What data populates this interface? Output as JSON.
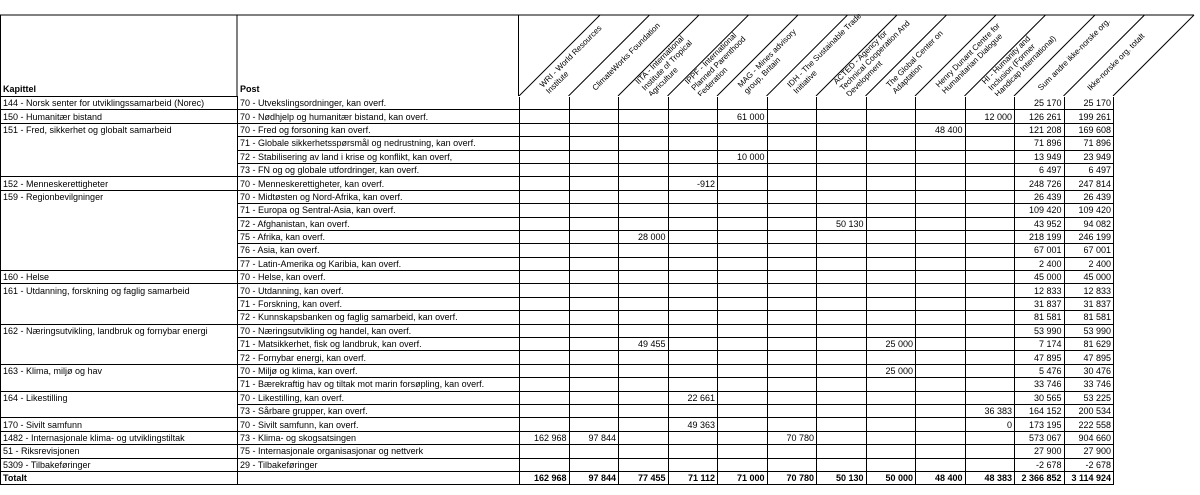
{
  "table": {
    "headers": [
      "Kapittel",
      "Post"
    ],
    "columns": [
      [
        "WRI - World Resources",
        "Institute"
      ],
      [
        "ClimateWorks Foundation"
      ],
      [
        "IITA - International",
        "Institute of Tropical",
        "Agriculture"
      ],
      [
        "IPPF - International",
        "Planned Parenthood",
        "Federation"
      ],
      [
        "MAG - Mines advisory",
        "group, Britain"
      ],
      [
        "IDH - The Sustainable Trade",
        "Initiative"
      ],
      [
        "ACTED - Agency for",
        "Technical Cooperation And",
        "Development"
      ],
      [
        "The Global Center on",
        "Adaptation"
      ],
      [
        "Henry Dunant Centre for",
        "Humanitarian Dialogue"
      ],
      [
        "HI - Humanity and",
        "Inclusion (Former",
        "Handicap International)"
      ],
      [
        "Sum andre ikke-norske org."
      ],
      [
        "Ikke-norske org. totalt"
      ]
    ],
    "rows": [
      [
        "144 - Norsk senter for utviklingssamarbeid (Norec)",
        "70 - Utvekslingsordninger, kan overf.",
        null,
        null,
        null,
        null,
        null,
        null,
        null,
        null,
        null,
        null,
        "25 170",
        "25 170"
      ],
      [
        "150 - Humanitær bistand",
        "70 - Nødhjelp og humanitær bistand, kan overf.",
        null,
        null,
        null,
        null,
        "61 000",
        null,
        null,
        null,
        null,
        "12 000",
        "126 261",
        "199 261"
      ],
      [
        "151 - Fred, sikkerhet og globalt samarbeid",
        "70 - Fred og forsoning kan overf.",
        null,
        null,
        null,
        null,
        null,
        null,
        null,
        null,
        "48 400",
        null,
        "121 208",
        "169 608"
      ],
      [
        null,
        "71 - Globale sikkerhetsspørsmål og nedrustning, kan overf.",
        null,
        null,
        null,
        null,
        null,
        null,
        null,
        null,
        null,
        null,
        "71 896",
        "71 896"
      ],
      [
        null,
        "72 - Stabilisering av land i krise og konflikt, kan overf,",
        null,
        null,
        null,
        null,
        "10 000",
        null,
        null,
        null,
        null,
        null,
        "13 949",
        "23 949"
      ],
      [
        null,
        "73 - FN og og globale utfordringer, kan overf.",
        null,
        null,
        null,
        null,
        null,
        null,
        null,
        null,
        null,
        null,
        "6 497",
        "6 497"
      ],
      [
        "152 - Menneskerettigheter",
        "70 - Menneskerettigheter, kan overf.",
        null,
        null,
        null,
        "-912",
        null,
        null,
        null,
        null,
        null,
        null,
        "248 726",
        "247 814"
      ],
      [
        "159 - Regionbevilgninger",
        "70 - Midtøsten og Nord-Afrika, kan overf.",
        null,
        null,
        null,
        null,
        null,
        null,
        null,
        null,
        null,
        null,
        "26 439",
        "26 439"
      ],
      [
        null,
        "71 - Europa og Sentral-Asia, kan overf.",
        null,
        null,
        null,
        null,
        null,
        null,
        null,
        null,
        null,
        null,
        "109 420",
        "109 420"
      ],
      [
        null,
        "72 - Afghanistan, kan overf.",
        null,
        null,
        null,
        null,
        null,
        null,
        "50 130",
        null,
        null,
        null,
        "43 952",
        "94 082"
      ],
      [
        null,
        "75 - Afrika, kan overf.",
        null,
        null,
        "28 000",
        null,
        null,
        null,
        null,
        null,
        null,
        null,
        "218 199",
        "246 199"
      ],
      [
        null,
        "76 - Asia, kan overf.",
        null,
        null,
        null,
        null,
        null,
        null,
        null,
        null,
        null,
        null,
        "67 001",
        "67 001"
      ],
      [
        null,
        "77 - Latin-Amerika og Karibia, kan overf.",
        null,
        null,
        null,
        null,
        null,
        null,
        null,
        null,
        null,
        null,
        "2 400",
        "2 400"
      ],
      [
        "160 - Helse",
        "70 - Helse, kan overf.",
        null,
        null,
        null,
        null,
        null,
        null,
        null,
        null,
        null,
        null,
        "45 000",
        "45 000"
      ],
      [
        "161 - Utdanning, forskning og faglig samarbeid",
        "70 - Utdanning, kan overf.",
        null,
        null,
        null,
        null,
        null,
        null,
        null,
        null,
        null,
        null,
        "12 833",
        "12 833"
      ],
      [
        null,
        "71 - Forskning, kan overf.",
        null,
        null,
        null,
        null,
        null,
        null,
        null,
        null,
        null,
        null,
        "31 837",
        "31 837"
      ],
      [
        null,
        "72 - Kunnskapsbanken og faglig samarbeid, kan overf.",
        null,
        null,
        null,
        null,
        null,
        null,
        null,
        null,
        null,
        null,
        "81 581",
        "81 581"
      ],
      [
        "162 - Næringsutvikling, landbruk og fornybar energi",
        "70 - Næringsutvikling og handel, kan overf.",
        null,
        null,
        null,
        null,
        null,
        null,
        null,
        null,
        null,
        null,
        "53 990",
        "53 990"
      ],
      [
        null,
        "71 - Matsikkerhet, fisk og landbruk, kan overf.",
        null,
        null,
        "49 455",
        null,
        null,
        null,
        null,
        "25 000",
        null,
        null,
        "7 174",
        "81 629"
      ],
      [
        null,
        "72 - Fornybar energi, kan overf.",
        null,
        null,
        null,
        null,
        null,
        null,
        null,
        null,
        null,
        null,
        "47 895",
        "47 895"
      ],
      [
        "163 - Klima, miljø og hav",
        "70 - Miljø og klima, kan overf.",
        null,
        null,
        null,
        null,
        null,
        null,
        null,
        "25 000",
        null,
        null,
        "5 476",
        "30 476"
      ],
      [
        null,
        "71 - Bærekraftig hav og tiltak mot marin forsøpling, kan overf.",
        null,
        null,
        null,
        null,
        null,
        null,
        null,
        null,
        null,
        null,
        "33 746",
        "33 746"
      ],
      [
        "164 - Likestilling",
        "70 - Likestilling, kan overf.",
        null,
        null,
        null,
        "22 661",
        null,
        null,
        null,
        null,
        null,
        null,
        "30 565",
        "53 225"
      ],
      [
        null,
        "73 - Sårbare grupper, kan overf.",
        null,
        null,
        null,
        null,
        null,
        null,
        null,
        null,
        null,
        "36 383",
        "164 152",
        "200 534"
      ],
      [
        "170 - Sivilt samfunn",
        "70 - Sivilt samfunn, kan overf.",
        null,
        null,
        null,
        "49 363",
        null,
        null,
        null,
        null,
        null,
        "0",
        "173 195",
        "222 558"
      ],
      [
        "1482 - Internasjonale klima- og utviklingstiltak",
        "73 - Klima- og skogsatsingen",
        "162 968",
        "97 844",
        null,
        null,
        null,
        "70 780",
        null,
        null,
        null,
        null,
        "573 067",
        "904 660"
      ],
      [
        "51 - Riksrevisjonen",
        "75 - Internasjonale organisasjonar og nettverk",
        null,
        null,
        null,
        null,
        null,
        null,
        null,
        null,
        null,
        null,
        "27 900",
        "27 900"
      ],
      [
        "5309 - Tilbakeføringer",
        "29 - Tilbakeføringer",
        null,
        null,
        null,
        null,
        null,
        null,
        null,
        null,
        null,
        null,
        "-2 678",
        "-2 678"
      ]
    ],
    "total": [
      "Totalt",
      null,
      "162 968",
      "97 844",
      "77 455",
      "71 112",
      "71 000",
      "70 780",
      "50 130",
      "50 000",
      "48 400",
      "48 383",
      "2 366 852",
      "3 114 924"
    ]
  }
}
